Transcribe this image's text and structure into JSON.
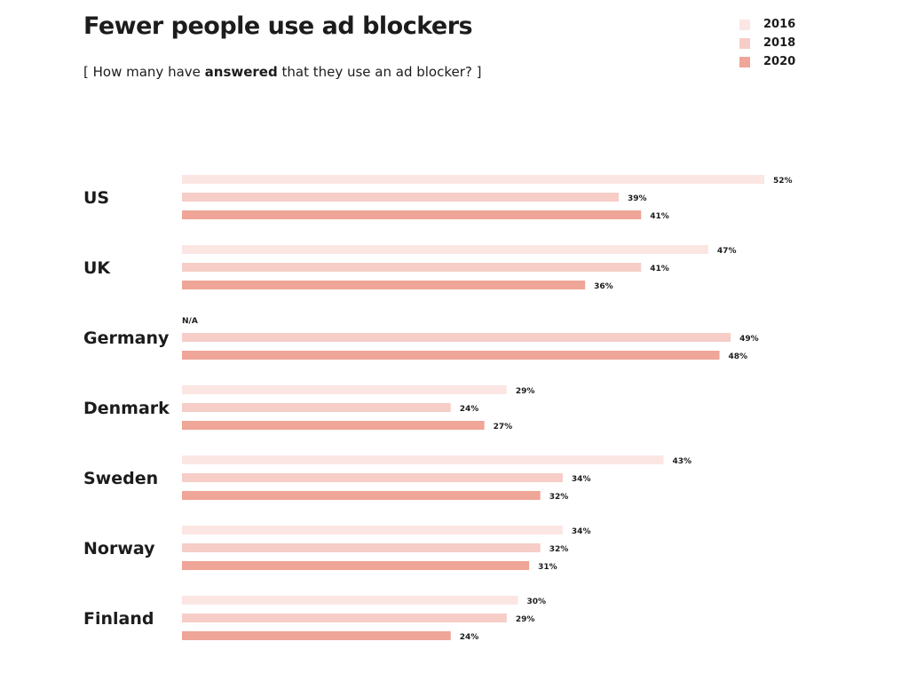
{
  "title": "Fewer people use ad blockers",
  "subtitle": {
    "before": "[ How many have ",
    "bold": "answered",
    "after": " that they use an ad blocker? ]"
  },
  "chart_data": {
    "type": "bar",
    "orientation": "horizontal",
    "title": "Fewer people use ad blockers",
    "categories": [
      "US",
      "UK",
      "Germany",
      "Denmark",
      "Sweden",
      "Norway",
      "Finland"
    ],
    "series": [
      {
        "name": "2016",
        "color": "#fbe6e4",
        "values": [
          52,
          47,
          null,
          29,
          43,
          34,
          30
        ]
      },
      {
        "name": "2018",
        "color": "#f6cdc7",
        "values": [
          39,
          41,
          49,
          24,
          34,
          32,
          29
        ]
      },
      {
        "name": "2020",
        "color": "#efa597",
        "values": [
          41,
          36,
          48,
          27,
          32,
          31,
          24
        ]
      }
    ],
    "missing_label": "N/A",
    "unit": "%",
    "legend": "top-right",
    "grid": false
  }
}
